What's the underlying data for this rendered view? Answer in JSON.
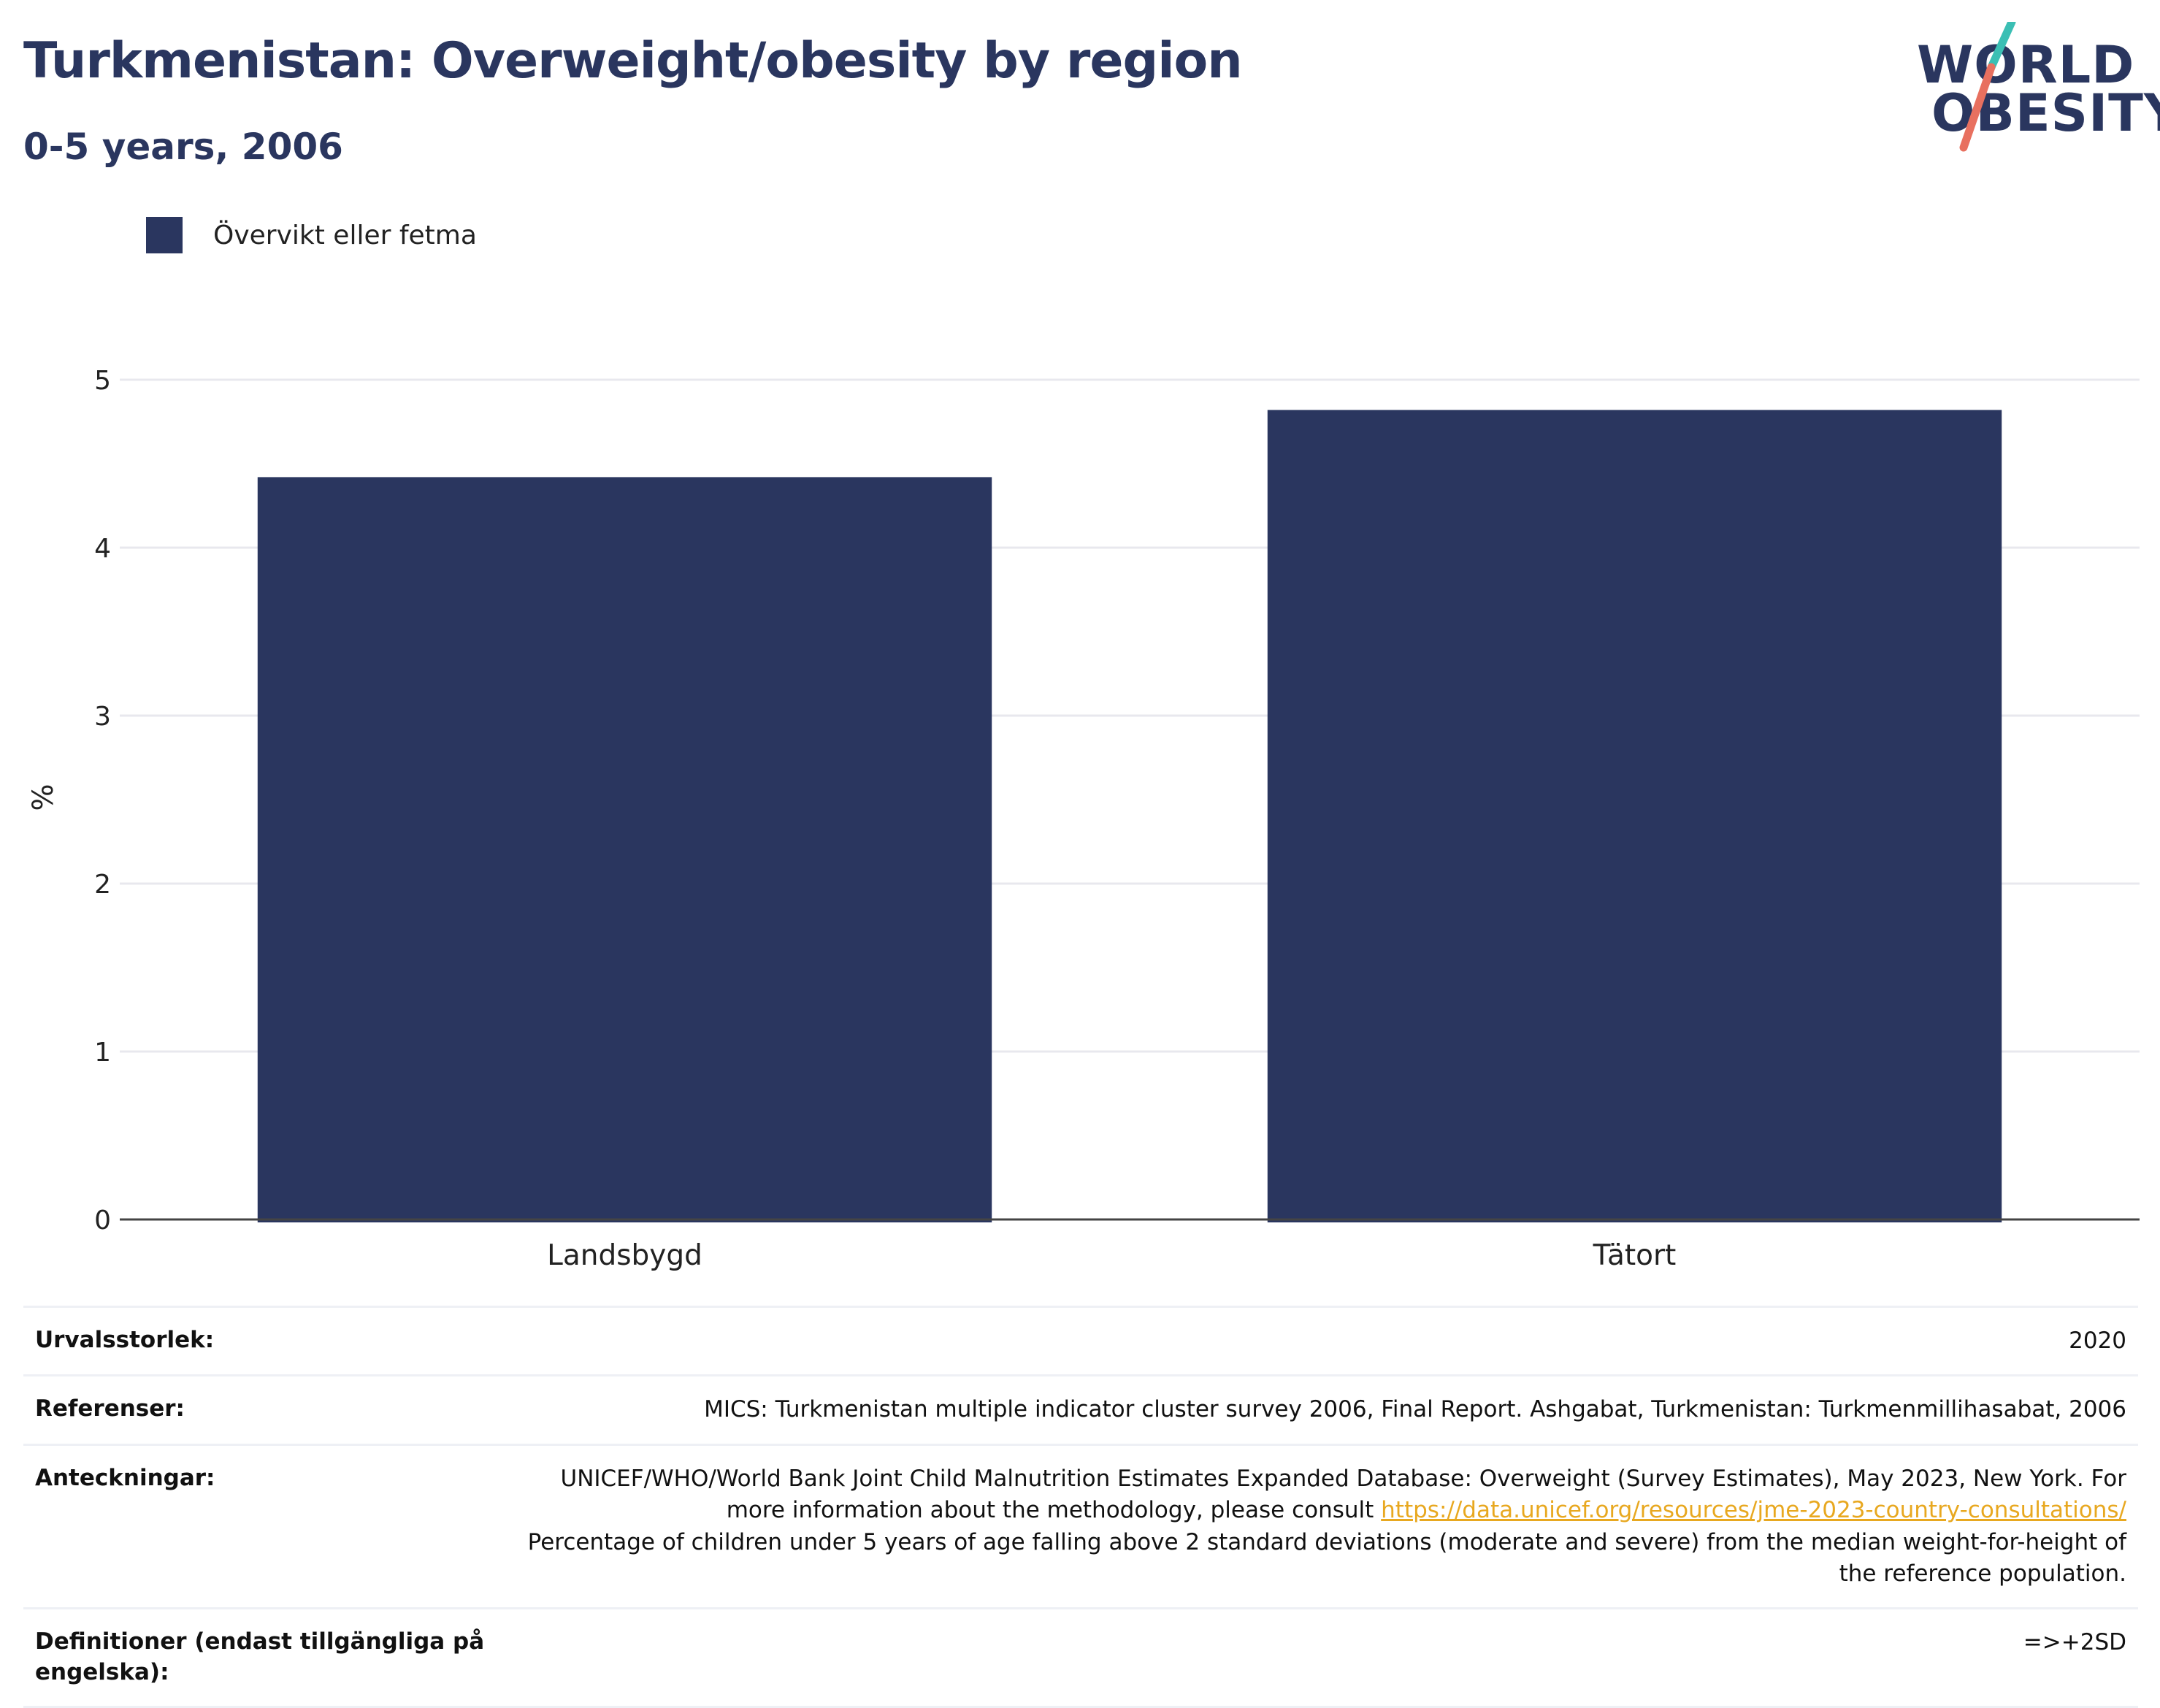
{
  "header": {
    "title": "Turkmenistan: Overweight/obesity by region",
    "subtitle": "0-5 years, 2006"
  },
  "logo": {
    "line1": "WORLD",
    "line2": "OBESITY",
    "colors": {
      "text": "#2a365f",
      "slash_top": "#3bbfb4",
      "slash_bottom": "#e8705f"
    }
  },
  "colors": {
    "bar": "#2a365f",
    "grid": "#e8e8ee",
    "axis": "#444444",
    "link": "#e8a820"
  },
  "chart_data": {
    "type": "bar",
    "categories": [
      "Landsbygd",
      "Tätort"
    ],
    "series": [
      {
        "name": "Övervikt eller fetma",
        "values": [
          4.42,
          4.82
        ]
      }
    ],
    "ylabel": "%",
    "ylim": [
      0,
      5
    ],
    "yticks": [
      0,
      1,
      2,
      3,
      4,
      5
    ],
    "grid": true,
    "legend_position": "top-left"
  },
  "info": {
    "rows": [
      {
        "key": "Urvalsstorlek:",
        "value": "2020"
      },
      {
        "key": "Referenser:",
        "value": "MICS: Turkmenistan multiple indicator cluster survey 2006, Final Report. Ashgabat, Turkmenistan: Turkmenmillihasabat, 2006"
      },
      {
        "key": "Anteckningar:",
        "value_part1": "UNICEF/WHO/World Bank Joint Child Malnutrition Estimates Expanded Database: Overweight (Survey Estimates), May 2023, New York. For more information about the methodology, please consult",
        "link": "https://data.unicef.org/resources/jme-2023-country-consultations/",
        "value_part2": "Percentage of children under 5 years of age falling above 2 standard deviations (moderate and severe) from the median weight-for-height of the reference population."
      },
      {
        "key": "Definitioner (endast tillgängliga på engelska):",
        "value": "=>+2SD"
      }
    ]
  }
}
